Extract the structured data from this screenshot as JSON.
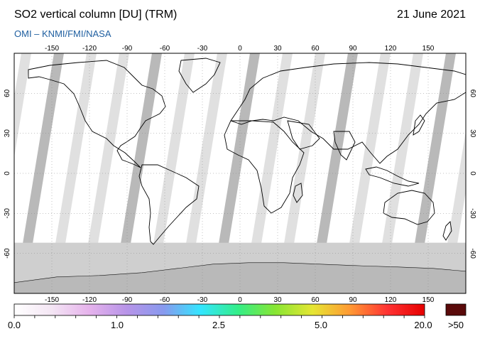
{
  "header": {
    "title": "SO2 vertical column [DU] (TRM)",
    "date": "21 June 2021",
    "credit": "OMI  –  KNMI/FMI/NASA"
  },
  "map": {
    "longitude_ticks": [
      "-150",
      "-120",
      "-90",
      "-60",
      "-30",
      "0",
      "30",
      "60",
      "90",
      "120",
      "150"
    ],
    "latitude_ticks": [
      "60",
      "30",
      "0",
      "-30",
      "-60"
    ],
    "colors": {
      "background": "#ffffff",
      "swath_gap": "#d8d8d8",
      "swath_dark": "#a8a8a8",
      "polar_fill": "#cfcfcf",
      "antarctic": "#b8b8b8",
      "coast": "#000000"
    }
  },
  "colorbar": {
    "labels": [
      "0.0",
      "1.0",
      "2.5",
      "5.0",
      "20.0",
      ">50"
    ],
    "stops": [
      "#ffffff",
      "#f4e6f4",
      "#e6b3ec",
      "#b894e8",
      "#8899ee",
      "#33e6ff",
      "#33ee88",
      "#88e633",
      "#e6e633",
      "#ff9933",
      "#ff3333",
      "#e60000"
    ],
    "overflow_color": "#5a0a0a"
  }
}
